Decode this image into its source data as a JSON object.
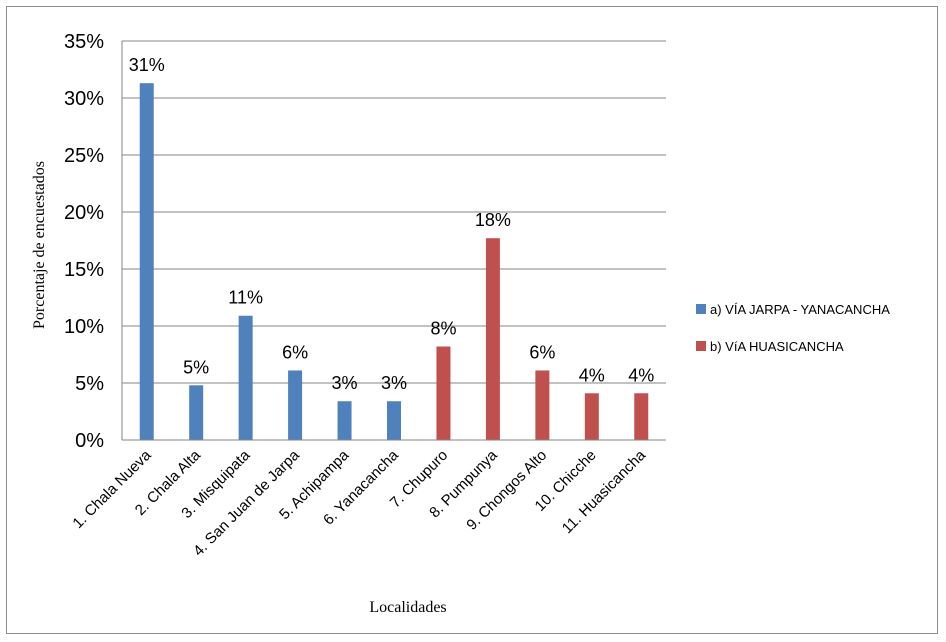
{
  "chart_data": {
    "type": "bar",
    "categories": [
      "1. Chala Nueva",
      "2. Chala Alta",
      "3. Misquipata",
      "4. San Juan de Jarpa",
      "5. Achipampa",
      "6. Yanacancha",
      "7. Chupuro",
      "8. Pumpunya",
      "9. Chongos Alto",
      "10. Chicche",
      "11. Huasicancha"
    ],
    "series": [
      {
        "name": "a) VÍA JARPA - YANACANCHA",
        "color": "#4f81bd",
        "values": [
          31.3,
          4.8,
          10.9,
          6.1,
          3.4,
          3.4,
          null,
          null,
          null,
          null,
          null
        ],
        "labels": [
          "31%",
          "5%",
          "11%",
          "6%",
          "3%",
          "3%",
          "",
          "",
          "",
          "",
          ""
        ]
      },
      {
        "name": "b) VíA HUASICANCHA",
        "color": "#c0504d",
        "values": [
          null,
          null,
          null,
          null,
          null,
          null,
          8.2,
          17.7,
          6.1,
          4.1,
          4.1
        ],
        "labels": [
          "",
          "",
          "",
          "",
          "",
          "",
          "8%",
          "18%",
          "6%",
          "4%",
          "4%"
        ]
      }
    ],
    "xlabel": "Localidades",
    "ylabel": "Porcentaje de encuestados",
    "ylim": [
      0,
      35
    ],
    "yticks": [
      "0%",
      "5%",
      "10%",
      "15%",
      "20%",
      "25%",
      "30%",
      "35%"
    ],
    "grid": true,
    "legend_position": "right"
  }
}
